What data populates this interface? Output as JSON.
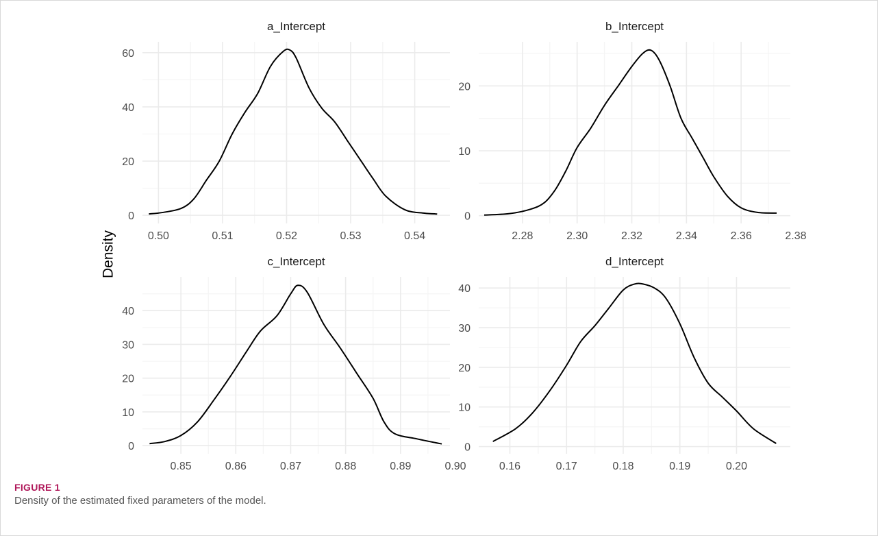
{
  "figure": {
    "label": "FIGURE 1",
    "caption": "Density of the estimated fixed parameters of the model."
  },
  "colors": {
    "grid_major": "#ebebeb",
    "grid_minor": "#f5f5f5",
    "line": "#000000"
  },
  "chart_data": {
    "type": "line",
    "ylabel": "Density",
    "panels": [
      {
        "title": "a_Intercept",
        "xlim": [
          0.4975,
          0.5455
        ],
        "ylim": [
          -3,
          64
        ],
        "x_ticks": [
          0.5,
          0.51,
          0.52,
          0.53,
          0.54
        ],
        "x_tick_labels": [
          "0.50",
          "0.51",
          "0.52",
          "0.53",
          "0.54"
        ],
        "y_ticks": [
          0,
          20,
          40,
          60
        ],
        "y_tick_labels": [
          "0",
          "20",
          "40",
          "60"
        ],
        "x": [
          0.4985,
          0.5005,
          0.5035,
          0.5055,
          0.5075,
          0.5095,
          0.5115,
          0.5135,
          0.5155,
          0.5175,
          0.5195,
          0.5205,
          0.5215,
          0.5235,
          0.5255,
          0.5275,
          0.5295,
          0.5315,
          0.5335,
          0.5355,
          0.5385,
          0.5415,
          0.5435
        ],
        "y": [
          0.5,
          1.0,
          2.5,
          6.0,
          13.0,
          20.0,
          30.0,
          38.0,
          45.0,
          55.0,
          60.5,
          61.0,
          58.0,
          47.0,
          39.5,
          34.5,
          27.5,
          20.5,
          13.5,
          7.0,
          2.0,
          0.8,
          0.5
        ]
      },
      {
        "title": "b_Intercept",
        "xlim": [
          2.264,
          2.378
        ],
        "ylim": [
          -1.2,
          26.8
        ],
        "x_ticks": [
          2.28,
          2.3,
          2.32,
          2.34,
          2.36,
          2.38
        ],
        "x_tick_labels": [
          "2.28",
          "2.30",
          "2.32",
          "2.34",
          "2.36",
          "2.38"
        ],
        "y_ticks": [
          0,
          10,
          20
        ],
        "y_tick_labels": [
          "0",
          "10",
          "20"
        ],
        "x": [
          2.266,
          2.275,
          2.283,
          2.288,
          2.292,
          2.296,
          2.3,
          2.305,
          2.31,
          2.315,
          2.32,
          2.324,
          2.327,
          2.33,
          2.334,
          2.338,
          2.342,
          2.346,
          2.35,
          2.355,
          2.36,
          2.366,
          2.373
        ],
        "y": [
          0.1,
          0.3,
          1.0,
          2.0,
          4.0,
          7.0,
          10.5,
          13.5,
          17.0,
          20.0,
          23.0,
          25.0,
          25.5,
          24.0,
          20.0,
          15.0,
          12.0,
          9.0,
          6.0,
          3.0,
          1.2,
          0.5,
          0.4
        ]
      },
      {
        "title": "c_Intercept",
        "xlim": [
          0.843,
          0.899
        ],
        "ylim": [
          -2.4,
          50
        ],
        "x_ticks": [
          0.85,
          0.86,
          0.87,
          0.88,
          0.89,
          0.9
        ],
        "x_tick_labels": [
          "0.85",
          "0.86",
          "0.87",
          "0.88",
          "0.89",
          "0.90"
        ],
        "y_ticks": [
          0,
          10,
          20,
          30,
          40
        ],
        "y_tick_labels": [
          "0",
          "10",
          "20",
          "30",
          "40"
        ],
        "x": [
          0.8443,
          0.847,
          0.85,
          0.853,
          0.856,
          0.859,
          0.862,
          0.8645,
          0.8675,
          0.87,
          0.8713,
          0.873,
          0.876,
          0.879,
          0.882,
          0.885,
          0.887,
          0.889,
          0.893,
          0.8975
        ],
        "y": [
          0.6,
          1.2,
          3.0,
          7.0,
          13.5,
          20.5,
          28.0,
          34.0,
          38.5,
          45.0,
          47.5,
          45.5,
          36.0,
          29.0,
          21.5,
          14.0,
          7.0,
          3.5,
          2.0,
          0.5
        ]
      },
      {
        "title": "d_Intercept",
        "xlim": [
          0.1545,
          0.2095
        ],
        "ylim": [
          -1.8,
          42.8
        ],
        "x_ticks": [
          0.16,
          0.17,
          0.18,
          0.19,
          0.2
        ],
        "x_tick_labels": [
          "0.16",
          "0.17",
          "0.18",
          "0.19",
          "0.20"
        ],
        "y_ticks": [
          0,
          10,
          20,
          30,
          40
        ],
        "y_tick_labels": [
          "0",
          "10",
          "20",
          "30",
          "40"
        ],
        "x": [
          0.157,
          0.161,
          0.164,
          0.167,
          0.17,
          0.1725,
          0.175,
          0.1775,
          0.18,
          0.182,
          0.1835,
          0.1855,
          0.1875,
          0.19,
          0.1925,
          0.195,
          0.1975,
          0.2,
          0.203,
          0.207
        ],
        "y": [
          1.3,
          4.5,
          8.5,
          14.0,
          20.5,
          26.5,
          30.5,
          35.0,
          39.5,
          41.0,
          41.0,
          40.0,
          37.5,
          31.0,
          22.5,
          16.0,
          12.5,
          9.0,
          4.5,
          0.8
        ]
      }
    ]
  }
}
